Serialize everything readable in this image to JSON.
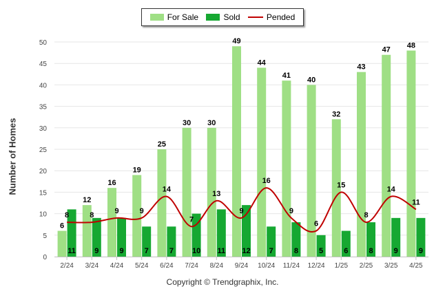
{
  "legend": {
    "for_sale": "For Sale",
    "sold": "Sold",
    "pended": "Pended"
  },
  "footer": {
    "copyright": "Copyright © Trendgraphix, Inc."
  },
  "colors": {
    "for_sale": "#9fdf85",
    "sold": "#16a832",
    "pended": "#c00000",
    "grid": "#e6e6e6"
  },
  "chart_data": {
    "type": "bar",
    "ylabel": "Number of Homes",
    "xlabel": "",
    "ylim": [
      0,
      50
    ],
    "yticks": [
      0,
      5,
      10,
      15,
      20,
      25,
      30,
      35,
      40,
      45,
      50
    ],
    "grid": true,
    "legend_position": "top-center",
    "categories": [
      "2/24",
      "3/24",
      "4/24",
      "5/24",
      "6/24",
      "7/24",
      "8/24",
      "9/24",
      "10/24",
      "11/24",
      "12/24",
      "1/25",
      "2/25",
      "3/25",
      "4/25"
    ],
    "series": [
      {
        "name": "For Sale",
        "type": "bar",
        "values": [
          6,
          12,
          16,
          19,
          25,
          30,
          30,
          49,
          44,
          41,
          40,
          32,
          43,
          47,
          48
        ]
      },
      {
        "name": "Sold",
        "type": "bar",
        "values": [
          11,
          9,
          9,
          7,
          7,
          10,
          11,
          12,
          7,
          8,
          5,
          6,
          8,
          9,
          9
        ]
      },
      {
        "name": "Pended",
        "type": "line",
        "values": [
          8,
          8,
          9,
          9,
          14,
          7,
          13,
          9,
          16,
          9,
          6,
          15,
          8,
          14,
          11
        ]
      }
    ]
  }
}
